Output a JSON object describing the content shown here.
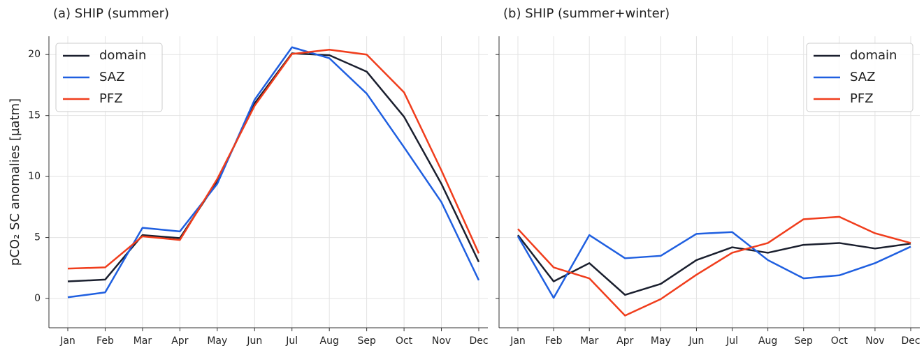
{
  "chart_data": [
    {
      "type": "line",
      "title": "(a)  SHIP (summer)",
      "ylabel": "pCO₂ SC anomalies [µatm]",
      "categories": [
        "Jan",
        "Feb",
        "Mar",
        "Apr",
        "May",
        "Jun",
        "Jul",
        "Aug",
        "Sep",
        "Oct",
        "Nov",
        "Dec"
      ],
      "ylim": [
        -2.4,
        21.5
      ],
      "yticks": [
        0,
        5,
        10,
        15,
        20
      ],
      "grid": true,
      "legend": "upper left",
      "series": [
        {
          "name": "domain",
          "color": "#1a1f2e",
          "values": [
            1.4,
            1.55,
            5.2,
            4.95,
            9.6,
            16.0,
            20.1,
            19.95,
            18.6,
            14.9,
            9.4,
            3.0
          ]
        },
        {
          "name": "SAZ",
          "color": "#1f5fe0",
          "values": [
            0.1,
            0.5,
            5.8,
            5.5,
            9.4,
            16.3,
            20.6,
            19.7,
            16.8,
            12.4,
            7.9,
            1.5
          ]
        },
        {
          "name": "PFZ",
          "color": "#f03d1c",
          "values": [
            2.45,
            2.55,
            5.1,
            4.8,
            9.8,
            15.8,
            20.05,
            20.4,
            20.0,
            16.9,
            10.5,
            3.7
          ]
        }
      ]
    },
    {
      "type": "line",
      "title": "(b)  SHIP (summer+winter)",
      "categories": [
        "Jan",
        "Feb",
        "Mar",
        "Apr",
        "May",
        "Jun",
        "Jul",
        "Aug",
        "Sep",
        "Oct",
        "Nov",
        "Dec"
      ],
      "ylim": [
        -2.4,
        21.5
      ],
      "yticks": [
        0,
        5,
        10,
        15,
        20
      ],
      "grid": true,
      "legend": "upper right",
      "series": [
        {
          "name": "domain",
          "color": "#1a1f2e",
          "values": [
            5.2,
            1.4,
            2.9,
            0.3,
            1.2,
            3.15,
            4.2,
            3.75,
            4.4,
            4.55,
            4.1,
            4.5
          ]
        },
        {
          "name": "SAZ",
          "color": "#1f5fe0",
          "values": [
            5.1,
            0.05,
            5.2,
            3.3,
            3.5,
            5.3,
            5.45,
            3.15,
            1.65,
            1.9,
            2.9,
            4.25
          ]
        },
        {
          "name": "PFZ",
          "color": "#f03d1c",
          "values": [
            5.7,
            2.55,
            1.65,
            -1.4,
            -0.05,
            1.95,
            3.75,
            4.55,
            6.5,
            6.7,
            5.35,
            4.55
          ]
        }
      ]
    }
  ]
}
